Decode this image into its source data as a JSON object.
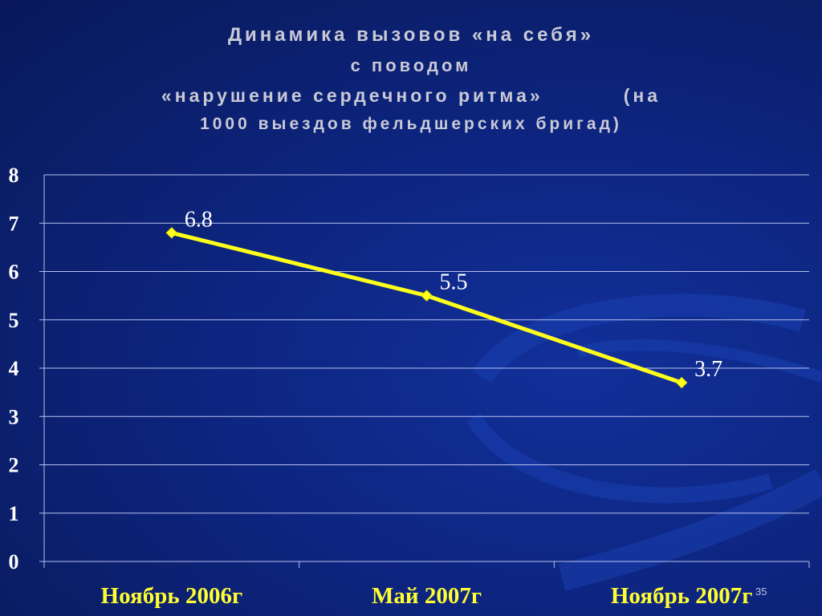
{
  "slide": {
    "title_lines": [
      "Динамика вызовов «на себя»",
      "с поводом",
      "«нарушение сердечного ритма»",
      "(на",
      "1000 выездов фельдшерских бригад)"
    ],
    "slide_number": "35"
  },
  "colors": {
    "line": "#ffff1a",
    "category_label": "#ffff33",
    "data_label": "#ffffff",
    "gridline": "#b8c2ee"
  },
  "chart_data": {
    "type": "line",
    "categories": [
      "Ноябрь 2006г",
      "Май 2007г",
      "Ноябрь 2007г"
    ],
    "series": [
      {
        "values": [
          6.8,
          5.5,
          3.7
        ],
        "labels": [
          "6.8",
          "5.5",
          "3.7"
        ]
      }
    ],
    "ylim": [
      0,
      8
    ],
    "yticks": [
      "0",
      "1",
      "2",
      "3",
      "4",
      "5",
      "6",
      "7",
      "8"
    ],
    "grid": true,
    "legend": "none",
    "marker": "diamond"
  }
}
